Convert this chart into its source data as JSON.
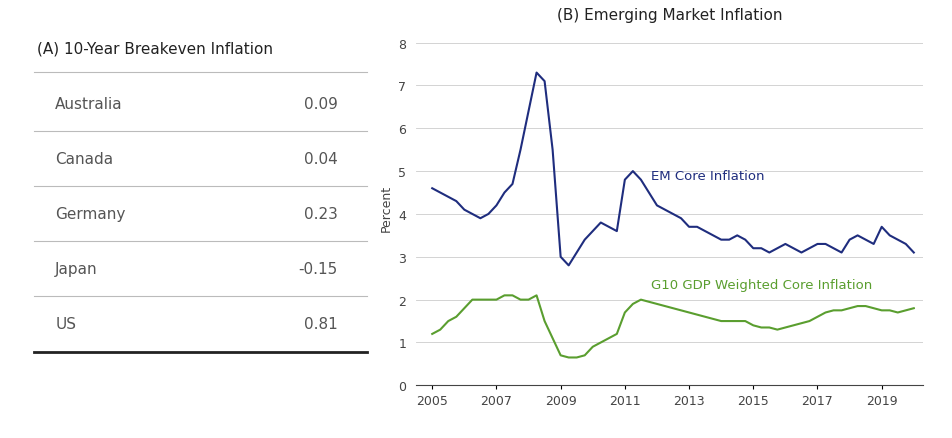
{
  "panel_a_title": "(A) 10-Year Breakeven Inflation",
  "panel_b_title": "(B) Emerging Market Inflation",
  "table_countries": [
    "Australia",
    "Canada",
    "Germany",
    "Japan",
    "US"
  ],
  "table_values": [
    0.09,
    0.04,
    0.23,
    -0.15,
    0.81
  ],
  "ylabel": "Percent",
  "yticks": [
    0,
    1,
    2,
    3,
    4,
    5,
    6,
    7,
    8
  ],
  "ylim": [
    0,
    8.3
  ],
  "xtick_labels": [
    "2005",
    "2007",
    "2009",
    "2011",
    "2013",
    "2015",
    "2017",
    "2019"
  ],
  "em_label": "EM Core Inflation",
  "g10_label": "G10 GDP Weighted Core Inflation",
  "em_color": "#1f2d7e",
  "g10_color": "#5a9e2f",
  "background_color": "#ffffff",
  "em_x": [
    2005.0,
    2005.25,
    2005.5,
    2005.75,
    2006.0,
    2006.25,
    2006.5,
    2006.75,
    2007.0,
    2007.25,
    2007.5,
    2007.75,
    2008.0,
    2008.25,
    2008.5,
    2008.75,
    2009.0,
    2009.25,
    2009.5,
    2009.75,
    2010.0,
    2010.25,
    2010.5,
    2010.75,
    2011.0,
    2011.25,
    2011.5,
    2011.75,
    2012.0,
    2012.25,
    2012.5,
    2012.75,
    2013.0,
    2013.25,
    2013.5,
    2013.75,
    2014.0,
    2014.25,
    2014.5,
    2014.75,
    2015.0,
    2015.25,
    2015.5,
    2015.75,
    2016.0,
    2016.25,
    2016.5,
    2016.75,
    2017.0,
    2017.25,
    2017.5,
    2017.75,
    2018.0,
    2018.25,
    2018.5,
    2018.75,
    2019.0,
    2019.25,
    2019.5,
    2019.75,
    2020.0
  ],
  "em_y": [
    4.6,
    4.5,
    4.4,
    4.3,
    4.1,
    4.0,
    3.9,
    4.0,
    4.2,
    4.5,
    4.7,
    5.5,
    6.4,
    7.3,
    7.1,
    5.5,
    3.0,
    2.8,
    3.1,
    3.4,
    3.6,
    3.8,
    3.7,
    3.6,
    4.8,
    5.0,
    4.8,
    4.5,
    4.2,
    4.1,
    4.0,
    3.9,
    3.7,
    3.7,
    3.6,
    3.5,
    3.4,
    3.4,
    3.5,
    3.4,
    3.2,
    3.2,
    3.1,
    3.2,
    3.3,
    3.2,
    3.1,
    3.2,
    3.3,
    3.3,
    3.2,
    3.1,
    3.4,
    3.5,
    3.4,
    3.3,
    3.7,
    3.5,
    3.4,
    3.3,
    3.1
  ],
  "g10_x": [
    2005.0,
    2005.25,
    2005.5,
    2005.75,
    2006.0,
    2006.25,
    2006.5,
    2006.75,
    2007.0,
    2007.25,
    2007.5,
    2007.75,
    2008.0,
    2008.25,
    2008.5,
    2008.75,
    2009.0,
    2009.25,
    2009.5,
    2009.75,
    2010.0,
    2010.25,
    2010.5,
    2010.75,
    2011.0,
    2011.25,
    2011.5,
    2011.75,
    2012.0,
    2012.25,
    2012.5,
    2012.75,
    2013.0,
    2013.25,
    2013.5,
    2013.75,
    2014.0,
    2014.25,
    2014.5,
    2014.75,
    2015.0,
    2015.25,
    2015.5,
    2015.75,
    2016.0,
    2016.25,
    2016.5,
    2016.75,
    2017.0,
    2017.25,
    2017.5,
    2017.75,
    2018.0,
    2018.25,
    2018.5,
    2018.75,
    2019.0,
    2019.25,
    2019.5,
    2019.75,
    2020.0
  ],
  "g10_y": [
    1.2,
    1.3,
    1.5,
    1.6,
    1.8,
    2.0,
    2.0,
    2.0,
    2.0,
    2.1,
    2.1,
    2.0,
    2.0,
    2.1,
    1.5,
    1.1,
    0.7,
    0.65,
    0.65,
    0.7,
    0.9,
    1.0,
    1.1,
    1.2,
    1.7,
    1.9,
    2.0,
    1.95,
    1.9,
    1.85,
    1.8,
    1.75,
    1.7,
    1.65,
    1.6,
    1.55,
    1.5,
    1.5,
    1.5,
    1.5,
    1.4,
    1.35,
    1.35,
    1.3,
    1.35,
    1.4,
    1.45,
    1.5,
    1.6,
    1.7,
    1.75,
    1.75,
    1.8,
    1.85,
    1.85,
    1.8,
    1.75,
    1.75,
    1.7,
    1.75,
    1.8
  ]
}
